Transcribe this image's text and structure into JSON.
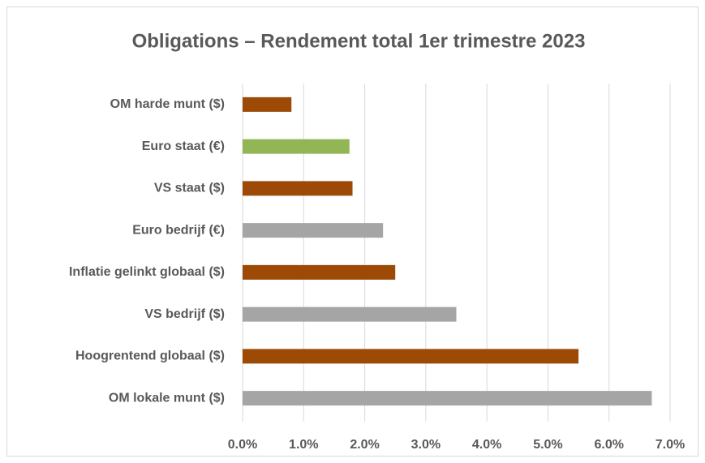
{
  "chart_data": {
    "type": "bar",
    "orientation": "horizontal",
    "title": "Obligations – Rendement total 1er trimestre 2023",
    "categories": [
      "OM harde munt ($)",
      "Euro staat (€)",
      "VS staat ($)",
      "Euro bedrijf (€)",
      "Inflatie gelinkt globaal ($)",
      "VS bedrijf ($)",
      "Hoogrentend globaal ($)",
      "OM lokale munt ($)"
    ],
    "values": [
      0.8,
      1.75,
      1.8,
      2.3,
      2.5,
      3.5,
      5.5,
      6.7
    ],
    "colors": [
      "#9c4a05",
      "#92b656",
      "#9c4a05",
      "#a5a5a5",
      "#9c4a05",
      "#a5a5a5",
      "#9c4a05",
      "#a5a5a5"
    ],
    "xlim": [
      0,
      7
    ],
    "xticks": [
      {
        "value": 0,
        "label": "0.0%"
      },
      {
        "value": 1,
        "label": "1.0%"
      },
      {
        "value": 2,
        "label": "2.0%"
      },
      {
        "value": 3,
        "label": "3.0%"
      },
      {
        "value": 4,
        "label": "4.0%"
      },
      {
        "value": 5,
        "label": "5.0%"
      },
      {
        "value": 6,
        "label": "6.0%"
      },
      {
        "value": 7,
        "label": "7.0%"
      }
    ],
    "grid": true
  }
}
